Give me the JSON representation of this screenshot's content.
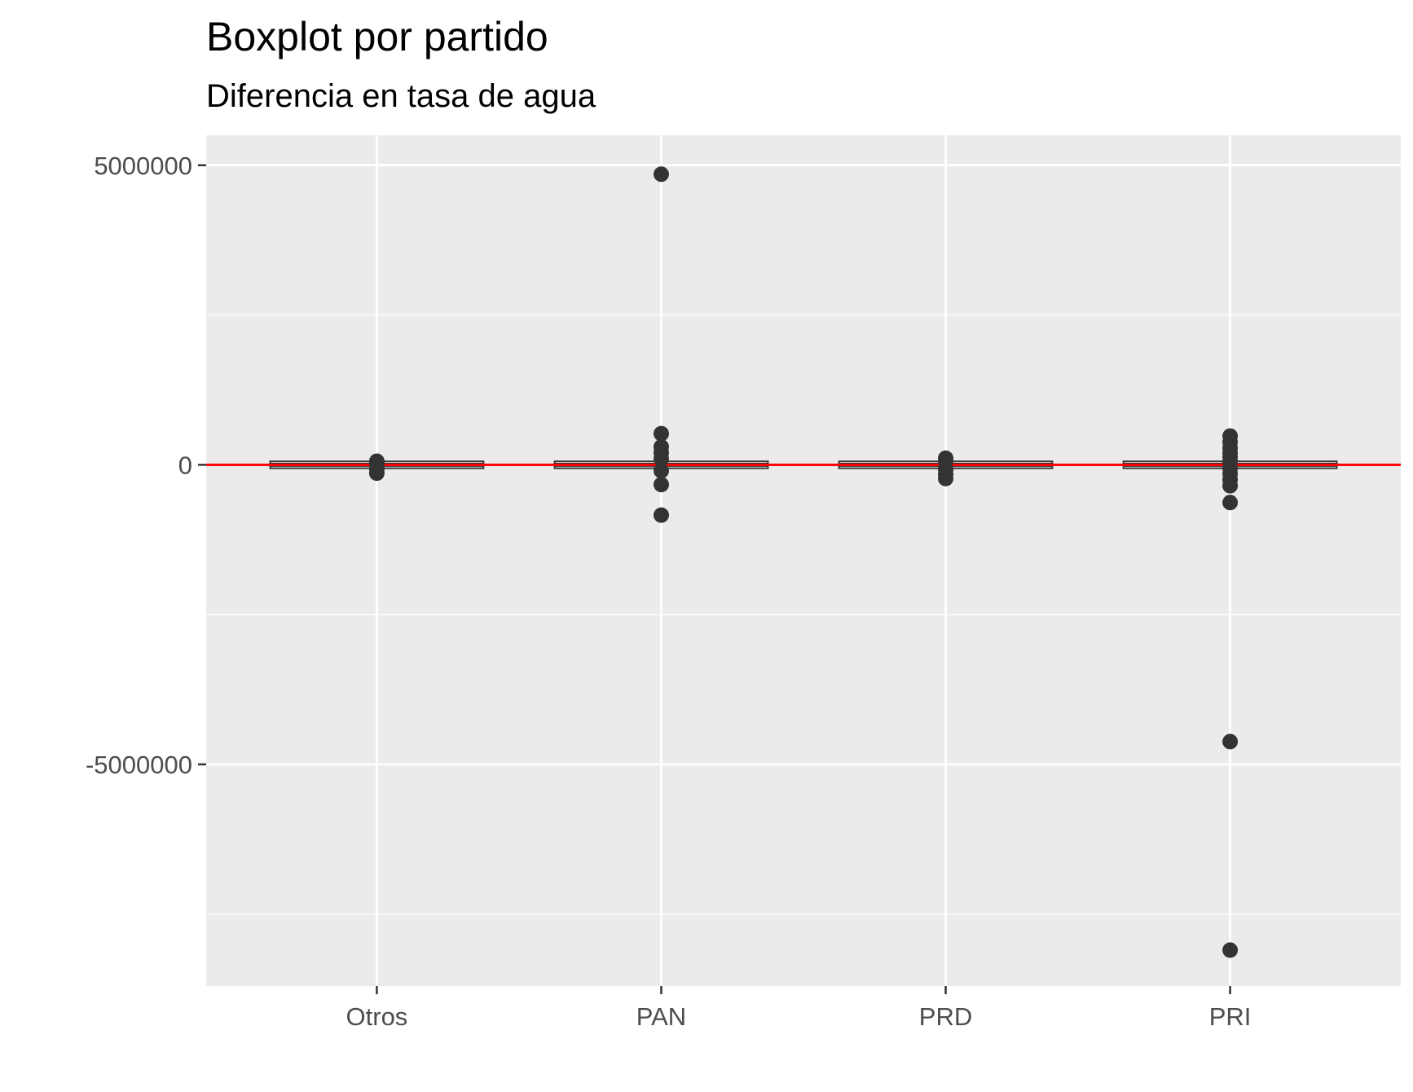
{
  "chart_data": {
    "type": "boxplot",
    "title": "Boxplot por partido",
    "subtitle": "Diferencia en tasa de agua",
    "xlabel": "",
    "ylabel": "",
    "categories": [
      "Otros",
      "PAN",
      "PRD",
      "PRI"
    ],
    "y_ticks": [
      5000000,
      0,
      -5000000
    ],
    "y_tick_labels": [
      "5000000",
      "0",
      "-5000000"
    ],
    "ylim": [
      -8700000,
      5500000
    ],
    "grid": true,
    "reference_line": {
      "y": 0,
      "color": "#ff0000"
    },
    "boxes": [
      {
        "category": "Otros",
        "q1": -30000,
        "median": 0,
        "q3": 30000
      },
      {
        "category": "PAN",
        "q1": -30000,
        "median": 0,
        "q3": 30000
      },
      {
        "category": "PRD",
        "q1": -30000,
        "median": 0,
        "q3": 30000
      },
      {
        "category": "PRI",
        "q1": -30000,
        "median": 0,
        "q3": 30000
      }
    ],
    "outliers": [
      {
        "category": "Otros",
        "values": [
          60000,
          30000,
          -70000,
          -140000
        ]
      },
      {
        "category": "PAN",
        "values": [
          4850000,
          520000,
          300000,
          200000,
          100000,
          -100000,
          -330000,
          -840000
        ]
      },
      {
        "category": "PRD",
        "values": [
          110000,
          60000,
          -80000,
          -160000,
          -230000
        ]
      },
      {
        "category": "PRI",
        "values": [
          480000,
          380000,
          280000,
          200000,
          130000,
          60000,
          -60000,
          -150000,
          -250000,
          -350000,
          -630000,
          -4620000,
          -8100000
        ]
      }
    ],
    "colors": {
      "panel": "#ebebeb",
      "grid": "#ffffff",
      "point": "#333333",
      "box_fill": "#ffffff",
      "box_line": "#333333"
    }
  }
}
